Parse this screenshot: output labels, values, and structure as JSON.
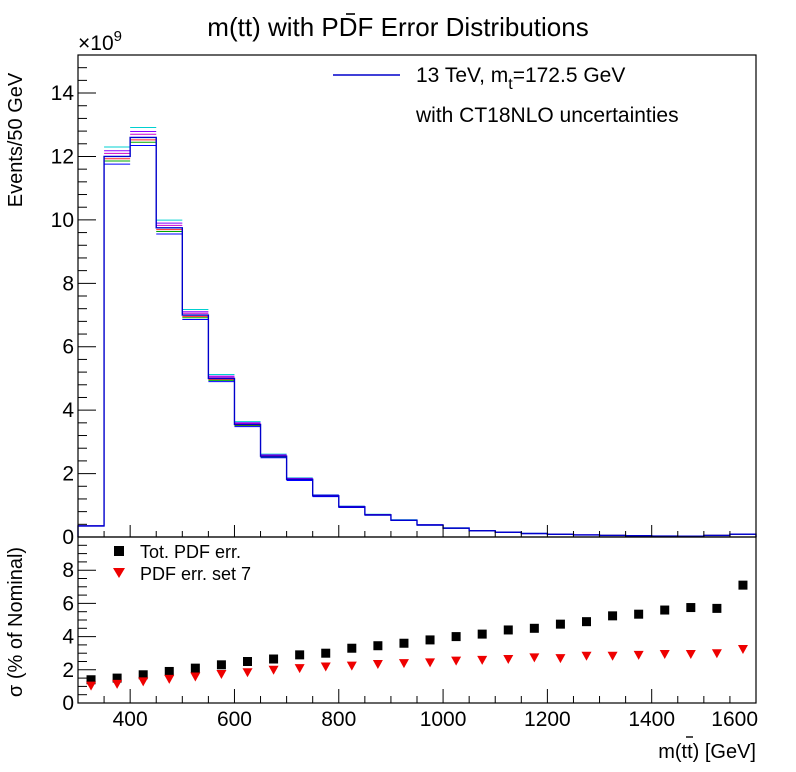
{
  "chart_data": [
    {
      "type": "histogram",
      "title_parts": [
        "m(t",
        "t",
        ") with PDF Error Distributions"
      ],
      "ylabel": "Events/50 GeV",
      "y_exponent": "×10",
      "y_exponent_power": "9",
      "x_range": [
        300,
        1600
      ],
      "ylim": [
        0,
        15.2
      ],
      "y_tick_labels": [
        "0",
        "2",
        "4",
        "6",
        "8",
        "10",
        "12",
        "14"
      ],
      "bin_edges": [
        300,
        350,
        400,
        450,
        500,
        550,
        600,
        650,
        700,
        750,
        800,
        850,
        900,
        950,
        1000,
        1050,
        1100,
        1150,
        1200,
        1250,
        1300,
        1350,
        1400,
        1450,
        1500,
        1550,
        1600
      ],
      "nominal_values_1e9": [
        0.35,
        12.0,
        12.6,
        9.75,
        7.0,
        5.0,
        3.55,
        2.55,
        1.82,
        1.3,
        0.95,
        0.7,
        0.53,
        0.38,
        0.28,
        0.2,
        0.15,
        0.11,
        0.085,
        0.065,
        0.05,
        0.04,
        0.03,
        0.025,
        0.05,
        0.09
      ],
      "legend": {
        "line1_pre": "13 TeV, m",
        "line1_sub": "t",
        "line1_post": "=172.5 GeV",
        "line2": "with CT18NLO uncertainties",
        "line_color": "#0000cc",
        "position": "top-right"
      },
      "band_colors": [
        "#00d0d0",
        "#8800ff",
        "#cc00cc",
        "#ff2222",
        "#00aa00",
        "#0000ff"
      ]
    },
    {
      "type": "scatter",
      "ylabel": "σ (% of Nominal)",
      "xlabel_parts": [
        "m(t",
        "t",
        ") [GeV]"
      ],
      "x_range": [
        300,
        1600
      ],
      "ylim": [
        0,
        10
      ],
      "x_tick_labels": [
        "400",
        "600",
        "800",
        "1000",
        "1200",
        "1400",
        "1600"
      ],
      "y_tick_labels": [
        "0",
        "2",
        "4",
        "6",
        "8"
      ],
      "legend": {
        "position": "top-left"
      },
      "series": [
        {
          "name": "Tot. PDF err.",
          "marker": "square",
          "color": "#000000",
          "x": [
            325,
            375,
            425,
            475,
            525,
            575,
            625,
            675,
            725,
            775,
            825,
            875,
            925,
            975,
            1025,
            1075,
            1125,
            1175,
            1225,
            1275,
            1325,
            1375,
            1425,
            1475,
            1525,
            1575
          ],
          "y": [
            1.4,
            1.5,
            1.7,
            1.9,
            2.1,
            2.3,
            2.5,
            2.65,
            2.9,
            3.0,
            3.3,
            3.45,
            3.6,
            3.8,
            4.0,
            4.15,
            4.4,
            4.5,
            4.75,
            4.9,
            5.25,
            5.35,
            5.6,
            5.75,
            5.7,
            7.1
          ]
        },
        {
          "name": "PDF err. set 7",
          "marker": "triangle-down",
          "color": "#ee0000",
          "x": [
            325,
            375,
            425,
            475,
            525,
            575,
            625,
            675,
            725,
            775,
            825,
            875,
            925,
            975,
            1025,
            1075,
            1125,
            1175,
            1225,
            1275,
            1325,
            1375,
            1425,
            1475,
            1525,
            1575
          ],
          "y": [
            1.05,
            1.15,
            1.3,
            1.45,
            1.6,
            1.75,
            1.85,
            2.0,
            2.1,
            2.2,
            2.25,
            2.35,
            2.4,
            2.45,
            2.55,
            2.6,
            2.65,
            2.75,
            2.7,
            2.85,
            2.85,
            2.9,
            2.95,
            2.95,
            3.0,
            3.25
          ]
        }
      ]
    }
  ]
}
